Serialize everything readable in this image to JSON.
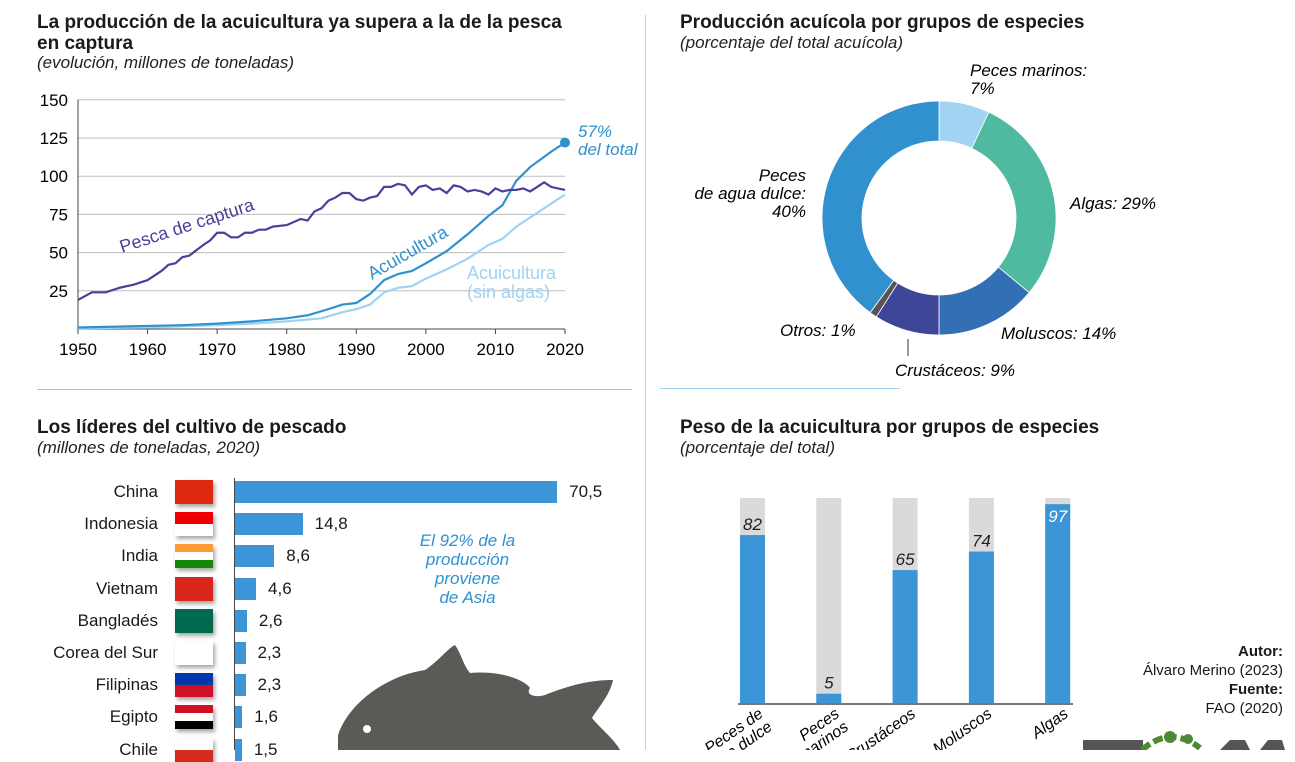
{
  "colors": {
    "capture": "#4b3f9a",
    "aqua": "#3091cf",
    "aqua_noalgae": "#9fd3f2",
    "bar": "#3b95d6",
    "bar_bg": "#dadada",
    "fish": "#5a5a57"
  },
  "chart_data": [
    {
      "type": "line",
      "title": "La producción de la acuicultura ya supera a la de la pesca en captura",
      "subtitle": "(evolución, millones de toneladas)",
      "xlim": [
        1950,
        2020
      ],
      "ylim": [
        0,
        150
      ],
      "yticks": [
        "25",
        "50",
        "75",
        "100",
        "125",
        "150"
      ],
      "xticks": [
        "1950",
        "1960",
        "1970",
        "1980",
        "1990",
        "2000",
        "2010",
        "2020"
      ],
      "grid": true,
      "series": [
        {
          "name": "Pesca de captura",
          "x": [
            1950,
            1952,
            1954,
            1956,
            1958,
            1960,
            1962,
            1963,
            1964,
            1965,
            1966,
            1968,
            1969,
            1970,
            1971,
            1972,
            1973,
            1974,
            1975,
            1976,
            1977,
            1978,
            1980,
            1982,
            1983,
            1984,
            1985,
            1986,
            1987,
            1988,
            1989,
            1990,
            1991,
            1992,
            1993,
            1994,
            1995,
            1996,
            1997,
            1998,
            1999,
            2000,
            2001,
            2002,
            2003,
            2004,
            2005,
            2006,
            2007,
            2008,
            2009,
            2010,
            2011,
            2012,
            2013,
            2014,
            2015,
            2016,
            2017,
            2018,
            2019,
            2020
          ],
          "y": [
            19,
            24,
            24,
            27,
            29,
            32,
            38,
            42,
            43,
            47,
            48,
            55,
            58,
            63,
            63,
            60,
            60,
            63,
            63,
            65,
            65,
            67,
            68,
            72,
            71,
            77,
            79,
            84,
            86,
            89,
            89,
            85,
            84,
            86,
            87,
            93,
            93,
            95,
            94,
            88,
            93,
            94,
            91,
            92,
            89,
            94,
            93,
            90,
            91,
            90,
            88,
            92,
            90,
            91,
            91,
            92,
            90,
            93,
            96,
            93,
            92,
            91
          ]
        },
        {
          "name": "Acuicultura",
          "x": [
            1950,
            1960,
            1965,
            1970,
            1975,
            1980,
            1983,
            1986,
            1988,
            1990,
            1992,
            1994,
            1996,
            1998,
            2000,
            2003,
            2006,
            2009,
            2011,
            2013,
            2015,
            2018,
            2020
          ],
          "y": [
            1,
            2,
            2.5,
            3.5,
            5,
            7,
            9,
            13,
            16,
            17,
            23,
            32,
            36,
            38,
            43,
            51,
            62,
            74,
            81,
            97,
            106,
            116,
            122
          ]
        },
        {
          "name": "Acuicultura (sin algas)",
          "x": [
            1950,
            1960,
            1970,
            1975,
            1980,
            1985,
            1988,
            1990,
            1992,
            1994,
            1996,
            1998,
            2000,
            2003,
            2006,
            2009,
            2011,
            2013,
            2015,
            2018,
            2020
          ],
          "y": [
            0.5,
            1,
            2.5,
            3.5,
            5,
            7,
            11,
            13,
            16,
            24,
            27,
            28,
            33,
            39,
            46,
            55,
            59,
            67,
            73,
            82,
            88
          ]
        }
      ],
      "annotation": {
        "value": "57%",
        "text": "del total"
      },
      "labels": {
        "capture": "Pesca de captura",
        "aqua": "Acuicultura",
        "noalgae_1": "Acuicultura",
        "noalgae_2": "(sin algas)"
      }
    },
    {
      "type": "pie",
      "title": "Producción acuícola por grupos de especies",
      "subtitle": "(porcentaje del total acuícola)",
      "slices": [
        {
          "name": "Peces marinos",
          "value": 7,
          "color": "#a3d3f3",
          "label": "Peces marinos:",
          "pct": "7%"
        },
        {
          "name": "Algas",
          "value": 29,
          "color": "#4fba9f",
          "label": "Algas: 29%"
        },
        {
          "name": "Moluscos",
          "value": 14,
          "color": "#336fb4",
          "label": "Moluscos: 14%"
        },
        {
          "name": "Crustáceos",
          "value": 9,
          "color": "#3e4699",
          "label": "Crustáceos: 9%"
        },
        {
          "name": "Otros",
          "value": 1,
          "color": "#555555",
          "label": "Otros: 1%"
        },
        {
          "name": "Peces de agua dulce",
          "value": 40,
          "color": "#3191ce",
          "label_1": "Peces",
          "label_2": "de agua dulce:",
          "pct": "40%"
        }
      ]
    },
    {
      "type": "bar",
      "orientation": "horizontal",
      "title": "Los líderes del cultivo de pescado",
      "subtitle": "(millones de toneladas, 2020)",
      "annotation": [
        "El 92% de la",
        "producción",
        "proviene",
        "de Asia"
      ],
      "categories": [
        "China",
        "Indonesia",
        "India",
        "Vietnam",
        "Bangladés",
        "Corea del Sur",
        "Filipinas",
        "Egipto",
        "Chile"
      ],
      "values": [
        70.5,
        14.8,
        8.6,
        4.6,
        2.6,
        2.3,
        2.3,
        1.6,
        1.5
      ],
      "value_labels": [
        "70,5",
        "14,8",
        "8,6",
        "4,6",
        "2,6",
        "2,3",
        "2,3",
        "1,6",
        "1,5"
      ]
    },
    {
      "type": "bar",
      "title": "Peso de la acuicultura por grupos de especies",
      "subtitle": "(porcentaje del total)",
      "ylim": [
        0,
        100
      ],
      "categories": [
        "Peces de agua dulce",
        "Peces marinos",
        "Crustáceos",
        "Moluscos",
        "Algas"
      ],
      "values": [
        82,
        5,
        65,
        74,
        97
      ],
      "value_labels": [
        "82",
        "5",
        "65",
        "74",
        "97"
      ]
    }
  ],
  "credits": {
    "author_label": "Autor:",
    "author": "Álvaro Merino (2023)",
    "source_label": "Fuente:",
    "source": "FAO (2020)"
  }
}
